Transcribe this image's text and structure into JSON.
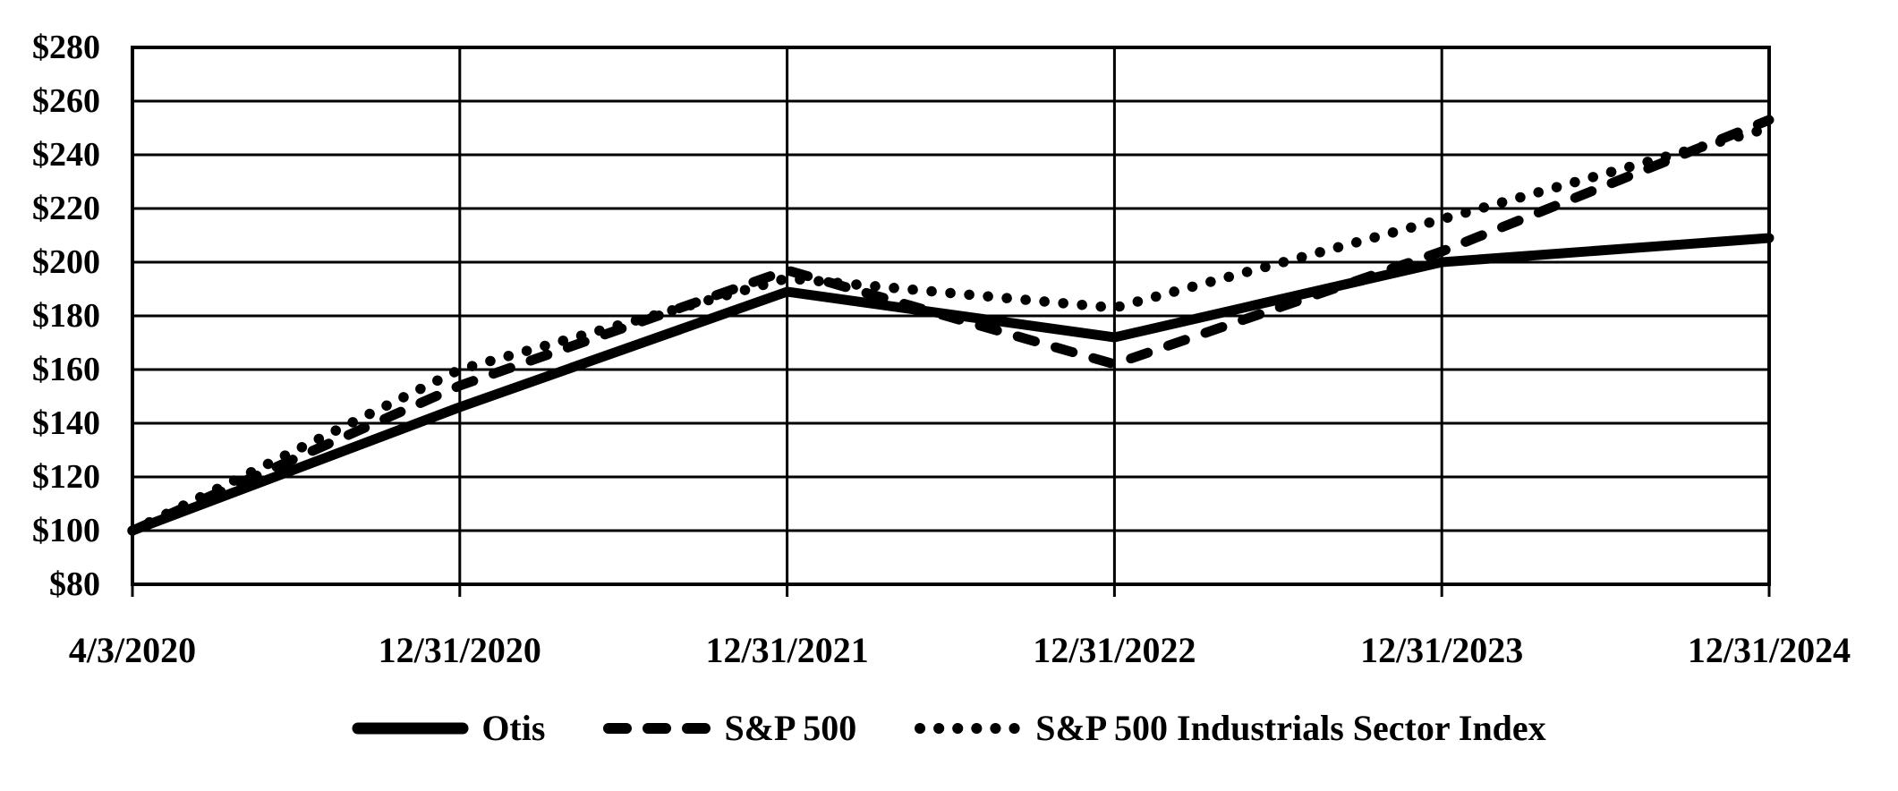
{
  "chart_data": {
    "type": "line",
    "title": "",
    "xlabel": "",
    "ylabel": "",
    "categories": [
      "4/3/2020",
      "12/31/2020",
      "12/31/2021",
      "12/31/2022",
      "12/31/2023",
      "12/31/2024"
    ],
    "series": [
      {
        "name": "Otis",
        "line_style": "solid",
        "values": [
          100,
          146,
          189,
          172,
          200,
          209
        ]
      },
      {
        "name": "S&P 500",
        "line_style": "dashed",
        "values": [
          100,
          154,
          197,
          162,
          204,
          253
        ]
      },
      {
        "name": "S&P 500 Industrials Sector Index",
        "line_style": "dotted",
        "values": [
          100,
          160,
          194,
          183,
          216,
          250
        ]
      }
    ],
    "y_axis": {
      "min": 80,
      "max": 280,
      "step": 20,
      "tick_prefix": "$",
      "tick_labels": [
        "$80",
        "$100",
        "$120",
        "$140",
        "$160",
        "$180",
        "$200",
        "$220",
        "$240",
        "$260",
        "$280"
      ]
    },
    "x_axis": {
      "tick_labels": [
        "4/3/2020",
        "12/31/2020",
        "12/31/2021",
        "12/31/2022",
        "12/31/2023",
        "12/31/2024"
      ]
    },
    "legend": {
      "position": "bottom",
      "entries": [
        "Otis",
        "S&P 500",
        "S&P 500 Industrials Sector Index"
      ]
    },
    "grid": true,
    "colors": {
      "line": "#000000",
      "background": "#ffffff"
    }
  }
}
